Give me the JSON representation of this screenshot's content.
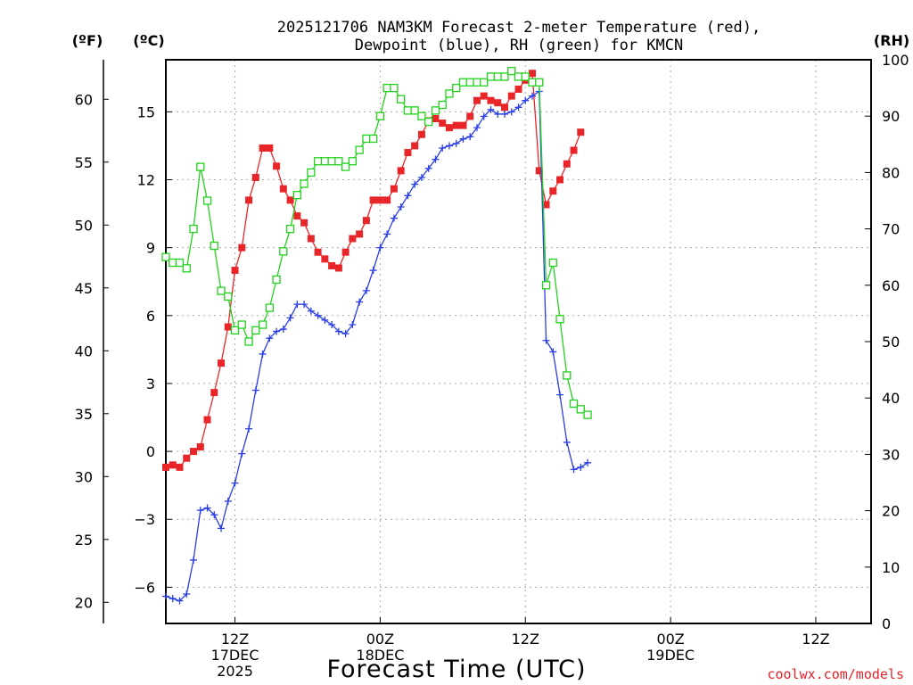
{
  "chart_data": {
    "type": "line",
    "title": [
      "2025121706 NAM3KM Forecast 2-meter Temperature (red),",
      "Dewpoint (blue), RH (green) for KMCN"
    ],
    "xlabel": "Forecast Time (UTC)",
    "units": {
      "fahrenheit": "(ºF)",
      "celsius": "(ºC)",
      "rh": "(RH)"
    },
    "credit": "coolwx.com/models",
    "x_hours": [
      6,
      7,
      8,
      9,
      10,
      11,
      12,
      13,
      14,
      15,
      16,
      17,
      18,
      19,
      20,
      21,
      22,
      23,
      24,
      25,
      26,
      27,
      28,
      29,
      30,
      31,
      32,
      33,
      34,
      35,
      36,
      37,
      38,
      39,
      40,
      41,
      42,
      43,
      44,
      45,
      46,
      47,
      48,
      49,
      50,
      51,
      52,
      53,
      54,
      55,
      56,
      57,
      58,
      59,
      60,
      61,
      62,
      63,
      64,
      65,
      66,
      67,
      68,
      69,
      70,
      71,
      72,
      73,
      74,
      75,
      76,
      77,
      78,
      79,
      80,
      81,
      82,
      83,
      84,
      85,
      86,
      87,
      88,
      89,
      90,
      91,
      92,
      93,
      94,
      95,
      96,
      97,
      98,
      99,
      100,
      101,
      102,
      103,
      104,
      105,
      106,
      107,
      108
    ],
    "x_range_hours": [
      6,
      108
    ],
    "celsius_range": [
      -7.6,
      17.3
    ],
    "rh_range": [
      0,
      100
    ],
    "x_ticks": [
      {
        "hour": 16,
        "lines": [
          "12Z",
          "17DEC",
          "2025"
        ]
      },
      {
        "hour": 37,
        "lines": [
          "00Z",
          "18DEC"
        ]
      },
      {
        "hour": 58,
        "lines": [
          "12Z"
        ]
      },
      {
        "hour": 79,
        "lines": [
          "00Z",
          "19DEC"
        ]
      },
      {
        "hour": 100,
        "lines": [
          "12Z"
        ]
      }
    ],
    "celsius_ticks": [
      "-6",
      "-3",
      "0",
      "3",
      "6",
      "9",
      "12",
      "15"
    ],
    "fahrenheit_ticks": [
      "20",
      "25",
      "30",
      "35",
      "40",
      "45",
      "50",
      "55",
      "60"
    ],
    "rh_ticks": [
      "0",
      "10",
      "20",
      "30",
      "40",
      "50",
      "60",
      "70",
      "80",
      "90",
      "100"
    ],
    "series": [
      {
        "name": "2-meter Temperature",
        "color": "#e8262a",
        "marker": "filled-square",
        "values": [
          -0.7,
          -0.6,
          -0.7,
          -0.3,
          0.0,
          0.2,
          1.4,
          2.6,
          3.9,
          5.5,
          8.0,
          9.0,
          11.1,
          12.1,
          13.4,
          13.4,
          12.6,
          11.6,
          11.1,
          10.4,
          10.1,
          9.4,
          8.8,
          8.5,
          8.2,
          8.1,
          8.8,
          9.4,
          9.6,
          10.2,
          11.1,
          11.1,
          11.1,
          11.6,
          12.4,
          13.2,
          13.5,
          14.0,
          14.6,
          14.7,
          14.5,
          14.3,
          14.4,
          14.4,
          14.8,
          15.5,
          15.7,
          15.5,
          15.4,
          15.2,
          15.7,
          16.0,
          16.4,
          16.7,
          12.4,
          10.9,
          11.5,
          12.0,
          12.7,
          13.3,
          14.1
        ]
      },
      {
        "name": "Dewpoint",
        "color": "#2a3ee8",
        "marker": "plus",
        "values": [
          -6.4,
          -6.5,
          -6.6,
          -6.3,
          -4.8,
          -2.6,
          -2.5,
          -2.8,
          -3.4,
          -2.2,
          -1.4,
          -0.1,
          1.0,
          2.7,
          4.3,
          5.0,
          5.3,
          5.4,
          5.9,
          6.5,
          6.5,
          6.2,
          6.0,
          5.8,
          5.6,
          5.3,
          5.2,
          5.6,
          6.6,
          7.1,
          8.0,
          9.0,
          9.6,
          10.3,
          10.8,
          11.3,
          11.8,
          12.1,
          12.5,
          12.9,
          13.4,
          13.5,
          13.6,
          13.8,
          13.9,
          14.3,
          14.8,
          15.1,
          14.9,
          14.9,
          15.0,
          15.2,
          15.5,
          15.7,
          15.9,
          4.9,
          4.4,
          2.5,
          0.4,
          -0.8,
          -0.7,
          -0.5
        ]
      },
      {
        "name": "RH",
        "color": "#22d11c",
        "marker": "open-square",
        "values": [
          65,
          64,
          64,
          63,
          70,
          81,
          75,
          67,
          59,
          58,
          52,
          53,
          50,
          52,
          53,
          56,
          61,
          66,
          70,
          76,
          78,
          80,
          82,
          82,
          82,
          82,
          81,
          82,
          84,
          86,
          86,
          90,
          95,
          95,
          93,
          91,
          91,
          90,
          89,
          91,
          92,
          94,
          95,
          96,
          96,
          96,
          96,
          97,
          97,
          97,
          98,
          97,
          97,
          96,
          96,
          60,
          64,
          54,
          44,
          39,
          38,
          37
        ]
      }
    ]
  }
}
